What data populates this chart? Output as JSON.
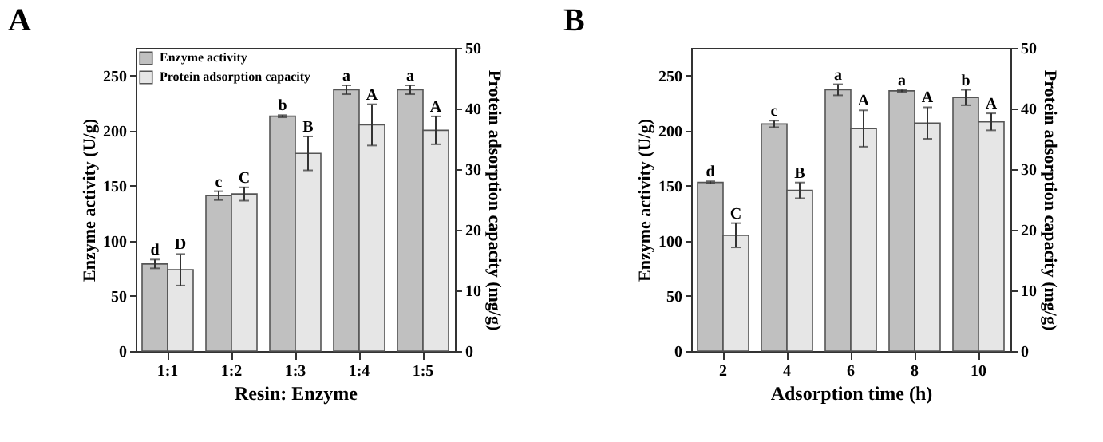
{
  "chart_data": [
    {
      "type": "bar",
      "title": "A",
      "xlabel": "Resin: Enzyme",
      "ylabel": "Enzyme activity (U/g)",
      "y2label": "Protein adsorption capacity (mg/g)",
      "categories": [
        "1:1",
        "1:2",
        "1:3",
        "1:4",
        "1:5"
      ],
      "series": [
        {
          "name": "Enzyme activity",
          "color": "#c0c0c0",
          "values": [
            79,
            141,
            213,
            237,
            237
          ],
          "errors": [
            4,
            4,
            1,
            4,
            4
          ],
          "value_labels": [
            "d",
            "c",
            "b",
            "a",
            "a"
          ]
        },
        {
          "name": "Protein adsorption capacity",
          "color": "#e6e6e6",
          "axis": "y2",
          "values": [
            13.4,
            25.9,
            32.6,
            37.3,
            36.4
          ],
          "errors": [
            2.6,
            1.1,
            2.8,
            3.4,
            2.3
          ],
          "value_labels": [
            "D",
            "C",
            "B",
            "A",
            "A"
          ]
        }
      ],
      "ylim": [
        0,
        275
      ],
      "yticks": [
        0,
        50,
        100,
        150,
        200,
        250
      ],
      "y2lim": [
        0,
        50
      ],
      "y2ticks": [
        0,
        10,
        20,
        30,
        40,
        50
      ],
      "legend": "top left"
    },
    {
      "type": "bar",
      "title": "B",
      "xlabel": "Adsorption time (h)",
      "ylabel": "Enzyme activity (U/g)",
      "y2label": "Protein adsorption capacity (mg/g)",
      "categories": [
        "2",
        "4",
        "6",
        "8",
        "10"
      ],
      "series": [
        {
          "name": "Enzyme activity",
          "color": "#c0c0c0",
          "values": [
            153,
            206,
            237,
            236,
            230
          ],
          "errors": [
            1,
            3,
            5,
            1,
            7
          ],
          "value_labels": [
            "d",
            "c",
            "a",
            "a",
            "b"
          ]
        },
        {
          "name": "Protein adsorption capacity",
          "color": "#e6e6e6",
          "axis": "y2",
          "values": [
            19.1,
            26.5,
            36.7,
            37.6,
            37.8
          ],
          "errors": [
            2,
            1.3,
            3,
            2.6,
            1.4
          ],
          "value_labels": [
            "C",
            "B",
            "A",
            "A",
            "A"
          ]
        }
      ],
      "ylim": [
        0,
        275
      ],
      "yticks": [
        0,
        50,
        100,
        150,
        200,
        250
      ],
      "y2lim": [
        0,
        50
      ],
      "y2ticks": [
        0,
        10,
        20,
        30,
        40,
        50
      ],
      "legend": "top left"
    }
  ]
}
